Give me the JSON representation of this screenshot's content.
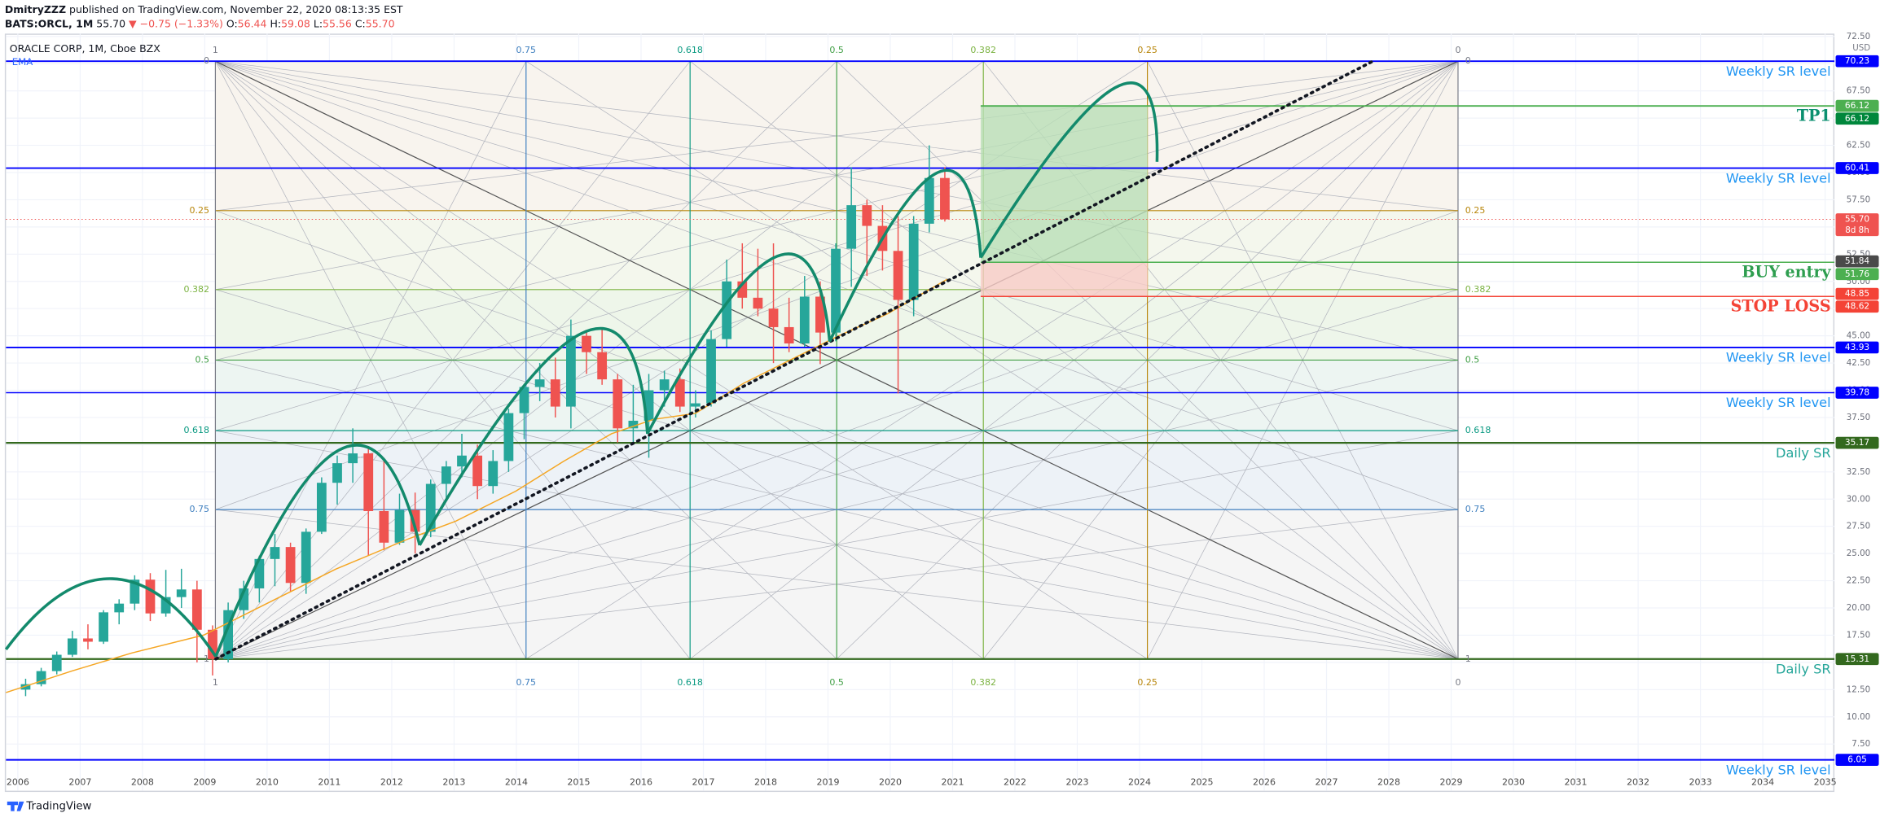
{
  "header": {
    "author": "DmitryZZZ",
    "published": "published on TradingView.com, November 22, 2020 08:13:35 EST",
    "symbol": "BATS:ORCL, 1M",
    "last": "55.70",
    "change": "▼ −0.75 (−1.33%)",
    "ohlc": [
      [
        "O:",
        "56.44"
      ],
      [
        "H:",
        "59.08"
      ],
      [
        "L:",
        "55.56"
      ],
      [
        "C:",
        "55.70"
      ]
    ]
  },
  "footer": "TradingView",
  "chart_data": {
    "type": "candlestick",
    "title": "ORACLE CORP, 1M, Cboe BZX",
    "indicator": "EMA",
    "currency": "USD",
    "up_color": "#26a69a",
    "down_color": "#ef5350",
    "x": [
      2006.125,
      2006.375,
      2006.625,
      2006.875,
      2007.125,
      2007.375,
      2007.625,
      2007.875,
      2008.125,
      2008.375,
      2008.625,
      2008.875,
      2009.125,
      2009.375,
      2009.625,
      2009.875,
      2010.125,
      2010.375,
      2010.625,
      2010.875,
      2011.125,
      2011.375,
      2011.625,
      2011.875,
      2012.125,
      2012.375,
      2012.625,
      2012.875,
      2013.125,
      2013.375,
      2013.625,
      2013.875,
      2014.125,
      2014.375,
      2014.625,
      2014.875,
      2015.125,
      2015.375,
      2015.625,
      2015.875,
      2016.125,
      2016.375,
      2016.625,
      2016.875,
      2017.125,
      2017.375,
      2017.625,
      2017.875,
      2018.125,
      2018.375,
      2018.625,
      2018.875,
      2019.125,
      2019.375,
      2019.625,
      2019.875,
      2020.125,
      2020.375,
      2020.625,
      2020.875
    ],
    "open": [
      12.5,
      13.0,
      14.2,
      15.7,
      17.2,
      16.9,
      19.6,
      20.4,
      22.6,
      19.5,
      21.0,
      21.7,
      18.0,
      15.3,
      19.8,
      21.8,
      24.5,
      25.6,
      22.3,
      27.0,
      31.5,
      33.3,
      34.2,
      28.9,
      26.0,
      29.0,
      27.0,
      31.4,
      33.0,
      34.0,
      31.2,
      33.5,
      37.9,
      40.3,
      41.0,
      38.5,
      45.0,
      43.5,
      41.0,
      36.5,
      37.2,
      40.0,
      41.0,
      38.5,
      38.8,
      44.7,
      50.0,
      48.5,
      47.5,
      45.8,
      44.3,
      48.6,
      45.3,
      53.0,
      57.0,
      55.1,
      52.8,
      48.3,
      55.3,
      59.5
    ],
    "high": [
      13.5,
      14.5,
      16.0,
      17.9,
      18.5,
      19.8,
      20.8,
      23.0,
      23.2,
      23.5,
      23.6,
      22.5,
      18.4,
      20.5,
      22.5,
      24.8,
      26.8,
      26.0,
      27.3,
      32.0,
      34.0,
      36.5,
      34.8,
      33.8,
      30.5,
      30.6,
      31.8,
      33.5,
      36.0,
      35.0,
      34.5,
      38.3,
      40.5,
      42.5,
      43.0,
      46.5,
      45.5,
      45.8,
      41.5,
      40.5,
      41.5,
      41.8,
      42.0,
      40.0,
      45.5,
      52.0,
      53.5,
      53.0,
      53.5,
      48.5,
      50.5,
      50.0,
      53.5,
      60.5,
      57.5,
      57.0,
      56.0,
      56.0,
      62.5,
      60.5
    ],
    "low": [
      11.9,
      12.8,
      13.9,
      15.5,
      16.2,
      16.7,
      18.5,
      19.8,
      18.8,
      19.2,
      20.0,
      15.0,
      13.8,
      15.0,
      19.0,
      20.5,
      22.0,
      21.5,
      21.3,
      26.8,
      29.5,
      31.5,
      24.8,
      25.3,
      25.8,
      25.0,
      26.5,
      29.8,
      32.0,
      30.0,
      30.5,
      32.5,
      35.5,
      39.0,
      37.5,
      36.5,
      41.5,
      40.5,
      35.2,
      35.0,
      33.8,
      38.5,
      38.0,
      37.5,
      38.5,
      44.0,
      47.5,
      46.8,
      42.5,
      43.5,
      44.0,
      42.4,
      44.5,
      49.5,
      50.5,
      51.0,
      39.7,
      46.8,
      54.5,
      55.5
    ],
    "close": [
      13.0,
      14.2,
      15.7,
      17.2,
      16.9,
      19.6,
      20.4,
      22.6,
      19.5,
      21.0,
      21.7,
      18.0,
      15.3,
      19.8,
      21.8,
      24.5,
      25.6,
      22.3,
      27.0,
      31.5,
      33.3,
      34.2,
      28.9,
      26.0,
      29.0,
      27.0,
      31.4,
      33.0,
      34.0,
      31.2,
      33.5,
      37.9,
      40.3,
      41.0,
      38.5,
      45.0,
      43.5,
      41.0,
      36.5,
      37.2,
      40.0,
      41.0,
      38.5,
      38.8,
      44.7,
      50.0,
      48.5,
      47.5,
      45.8,
      44.3,
      48.6,
      45.3,
      53.0,
      57.0,
      55.1,
      52.8,
      48.3,
      55.3,
      59.5,
      55.7
    ],
    "xlim": [
      2005.81,
      2035.15
    ],
    "ylim": [
      4.86,
      72.76
    ],
    "xticks": [
      2006,
      2007,
      2008,
      2009,
      2010,
      2011,
      2012,
      2013,
      2014,
      2015,
      2016,
      2017,
      2018,
      2019,
      2020,
      2021,
      2022,
      2023,
      2024,
      2025,
      2026,
      2027,
      2028,
      2029,
      2030,
      2031,
      2032,
      2033,
      2034,
      2035
    ],
    "yticks": [
      {
        "value": 7.5,
        "label": "7.50"
      },
      {
        "value": 10,
        "label": "10.00"
      },
      {
        "value": 12.5,
        "label": "12.50"
      },
      {
        "value": 15,
        "label": "15.00"
      },
      {
        "value": 17.5,
        "label": "17.50"
      },
      {
        "value": 20,
        "label": "20.00"
      },
      {
        "value": 22.5,
        "label": "22.50"
      },
      {
        "value": 25,
        "label": "25.00"
      },
      {
        "value": 27.5,
        "label": "27.50"
      },
      {
        "value": 30,
        "label": "30.00"
      },
      {
        "value": 32.5,
        "label": "32.50"
      },
      {
        "value": 35,
        "label": "35.00"
      },
      {
        "value": 37.5,
        "label": "37.50"
      },
      {
        "value": 40,
        "label": "40.00"
      },
      {
        "value": 42.5,
        "label": "42.50"
      },
      {
        "value": 45,
        "label": "45.00"
      },
      {
        "value": 47.5,
        "label": "47.50"
      },
      {
        "value": 50,
        "label": "50.00"
      },
      {
        "value": 52.5,
        "label": "52.50"
      },
      {
        "value": 55,
        "label": "55.00"
      },
      {
        "value": 57.5,
        "label": "57.50"
      },
      {
        "value": 60,
        "label": "60.00"
      },
      {
        "value": 62.5,
        "label": "62.50"
      },
      {
        "value": 65,
        "label": "65.00"
      },
      {
        "value": 67.5,
        "label": "67.50"
      },
      {
        "value": 70,
        "label": "70.00"
      },
      {
        "value": 72.5,
        "label": "72.50"
      }
    ],
    "grid": true,
    "gann_box": {
      "x": [
        2009.17,
        2029.11
      ],
      "y": [
        15.31,
        70.23
      ],
      "levels": [
        0,
        0.25,
        0.382,
        0.5,
        0.618,
        0.75,
        1
      ],
      "colors": [
        "#787b86",
        "#b8860b",
        "#7cb342",
        "#43a047",
        "#089981",
        "#3f7fbf",
        "#787b86"
      ],
      "fills": [
        "#f8f4ee",
        "#f4f7ed",
        "#eef6ea",
        "#edf5f2",
        "#edf2f7",
        "#f5f5f5"
      ]
    },
    "levels": [
      {
        "value": 70.23,
        "name": "Weekly SR level",
        "color": "#0000ff",
        "label_color": "#2196f3",
        "width": 1.3,
        "font_size": 11
      },
      {
        "value": 66.12,
        "name": "TP1",
        "color": "#4caf50",
        "label_color": "#0a8f6f",
        "width": 1.3,
        "font_size": 13,
        "start": 2021.45
      },
      {
        "value": 60.41,
        "name": "Weekly SR level",
        "color": "#0000ff",
        "label_color": "#2196f3",
        "width": 1.3,
        "font_size": 11
      },
      {
        "value": 51.76,
        "name": "BUY entry",
        "color": "#4caf50",
        "label_color": "#2e9e4f",
        "width": 1,
        "font_size": 13,
        "start": 2021.45
      },
      {
        "value": 48.62,
        "name": "STOP LOSS",
        "color": "#f44336",
        "label_color": "#f44336",
        "width": 1,
        "font_size": 13,
        "start": 2021.45
      },
      {
        "value": 43.93,
        "name": "Weekly SR level",
        "color": "#0000ff",
        "label_color": "#2196f3",
        "width": 1.3,
        "font_size": 11
      },
      {
        "value": 39.78,
        "name": "Weekly SR level",
        "color": "#0000ff",
        "label_color": "#2196f3",
        "width": 1,
        "font_size": 11
      },
      {
        "value": 35.17,
        "name": "Daily SR",
        "color": "#33691e",
        "label_color": "#26a69a",
        "width": 1.5,
        "font_size": 11
      },
      {
        "value": 15.31,
        "name": "Daily SR",
        "color": "#33691e",
        "label_color": "#26a69a",
        "width": 1.5,
        "font_size": 11
      },
      {
        "value": 6.05,
        "name": "Weekly SR level",
        "color": "#0000ff",
        "label_color": "#2196f3",
        "width": 1.3,
        "font_size": 11
      }
    ],
    "position": {
      "x": [
        2021.45,
        2024.13
      ],
      "profit_color": "#b9dfb7",
      "loss_color": "#f7cbc6"
    },
    "tags": [
      {
        "value": 70.23,
        "color": "#0000ff"
      },
      {
        "value": 66.12,
        "color": "#4caf50"
      },
      {
        "value": 66.12,
        "color": "#00873c"
      },
      {
        "value": 60.41,
        "color": "#0000ff"
      },
      {
        "value": {
          "value": 55.7,
          "label": "55.70"
        },
        "color": "#ef5350",
        "countdown": "8d 8h"
      },
      {
        "value": 51.84,
        "color": "#4a4a4a"
      },
      {
        "value": 51.76,
        "color": "#4caf50"
      },
      {
        "value": 48.85,
        "color": "#f44336"
      },
      {
        "value": 48.62,
        "color": "#f44336"
      },
      {
        "value": 43.93,
        "color": "#0000ff"
      },
      {
        "value": 39.78,
        "color": "#0000ff"
      },
      {
        "value": 35.17,
        "color": "#33691e"
      },
      {
        "value": 15.31,
        "color": "#33691e"
      },
      {
        "value": 6.05,
        "color": "#0000ff"
      }
    ]
  }
}
